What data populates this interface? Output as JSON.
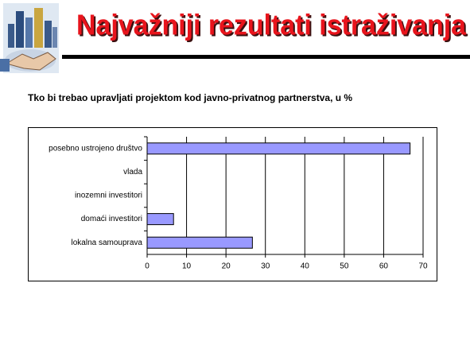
{
  "header": {
    "title": "Najvažniji rezultati istraživanja"
  },
  "chart_data": {
    "type": "barh",
    "title": "Tko bi trebao upravljati projektom kod javno-privatnog partnerstva, u %",
    "categories": [
      "posebno ustrojeno društvo",
      "vlada",
      "inozemni investitori",
      "domaći investitori",
      "lokalna samouprava"
    ],
    "values": [
      66.7,
      0,
      0,
      6.7,
      26.7
    ],
    "color": "#9999ff",
    "xlim": [
      0,
      70
    ],
    "xticks": [
      0,
      10,
      20,
      30,
      40,
      50,
      60,
      70
    ],
    "grid": true
  }
}
